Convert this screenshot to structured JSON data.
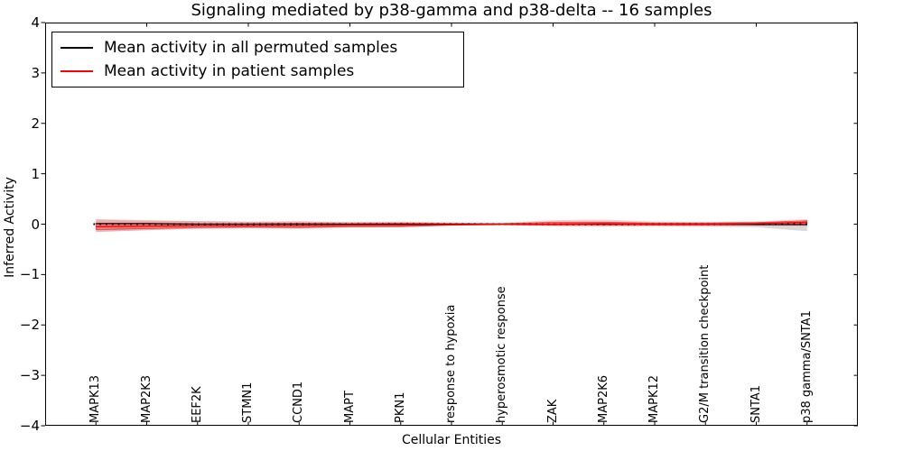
{
  "figure": {
    "title": "Signaling mediated by p38-gamma and p38-delta -- 16 samples",
    "xlabel": "Cellular Entities",
    "ylabel": "Inferred Activity"
  },
  "legend": {
    "items": [
      {
        "label": "Mean activity in all permuted samples",
        "color": "#000000"
      },
      {
        "label": "Mean activity in patient samples",
        "color": "#ff0000"
      }
    ]
  },
  "chart_data": {
    "type": "line",
    "title": "Signaling mediated by p38-gamma and p38-delta -- 16 samples",
    "xlabel": "Cellular Entities",
    "ylabel": "Inferred Activity",
    "legend_position": "upper left",
    "grid": false,
    "categories": [
      "MAPK13",
      "MAP2K3",
      "EEF2K",
      "STMN1",
      "CCND1",
      "MAPT",
      "PKN1",
      "response to hypoxia",
      "hyperosmotic response",
      "ZAK",
      "MAP2K6",
      "MAPK12",
      "G2/M transition checkpoint",
      "SNTA1",
      "p38 gamma/SNTA1"
    ],
    "x": [
      1,
      2,
      3,
      4,
      5,
      6,
      7,
      8,
      9,
      10,
      11,
      12,
      13,
      14,
      15
    ],
    "xlim": [
      0,
      16
    ],
    "ylim": [
      -4,
      4
    ],
    "yticks": [
      -4,
      -3,
      -2,
      -1,
      0,
      1,
      2,
      3,
      4
    ],
    "xticks_unlabeled": [
      2,
      4,
      6,
      8,
      10,
      12,
      14
    ],
    "zero_line": {
      "value": 0,
      "style": "dotted",
      "color": "#000000"
    },
    "series": [
      {
        "name": "Mean activity in all permuted samples",
        "color": "#000000",
        "style": "solid",
        "values": [
          0.01,
          0.01,
          0.0,
          0.0,
          0.0,
          0.0,
          0.0,
          0.0,
          0.0,
          0.0,
          0.0,
          0.0,
          0.0,
          -0.01,
          -0.01
        ]
      },
      {
        "name": "Mean activity in patient samples",
        "color": "#ff0000",
        "style": "solid",
        "values": [
          -0.05,
          -0.04,
          -0.03,
          -0.03,
          -0.03,
          -0.02,
          -0.02,
          -0.01,
          0.0,
          0.0,
          0.01,
          0.0,
          0.0,
          0.01,
          0.04
        ]
      }
    ],
    "bands": [
      {
        "name": "permuted-samples-std-band",
        "color": "#808080",
        "opacity": 0.3,
        "upper": [
          0.09,
          0.07,
          0.06,
          0.05,
          0.05,
          0.04,
          0.04,
          0.03,
          0.02,
          0.03,
          0.04,
          0.04,
          0.04,
          0.05,
          0.05
        ],
        "lower": [
          -0.16,
          -0.12,
          -0.09,
          -0.08,
          -0.08,
          -0.06,
          -0.05,
          -0.03,
          -0.02,
          -0.03,
          -0.04,
          -0.04,
          -0.05,
          -0.06,
          -0.14
        ]
      },
      {
        "name": "patient-samples-outer-band",
        "color": "#ff4444",
        "opacity": 0.25,
        "upper": [
          0.1,
          0.08,
          0.06,
          0.05,
          0.06,
          0.04,
          0.05,
          0.03,
          0.02,
          0.08,
          0.09,
          0.05,
          0.04,
          0.05,
          0.1
        ],
        "lower": [
          -0.15,
          -0.12,
          -0.09,
          -0.08,
          -0.09,
          -0.07,
          -0.06,
          -0.03,
          -0.02,
          -0.04,
          -0.05,
          -0.04,
          -0.04,
          -0.03,
          -0.04
        ]
      },
      {
        "name": "patient-samples-inner-band",
        "color": "#ff2222",
        "opacity": 0.38,
        "upper": [
          0.02,
          0.02,
          0.01,
          0.01,
          0.02,
          0.01,
          0.02,
          0.01,
          0.01,
          0.04,
          0.04,
          0.02,
          0.02,
          0.03,
          0.07
        ],
        "lower": [
          -0.11,
          -0.09,
          -0.07,
          -0.06,
          -0.07,
          -0.05,
          -0.05,
          -0.02,
          -0.01,
          -0.02,
          -0.02,
          -0.02,
          -0.02,
          -0.01,
          0.01
        ]
      }
    ]
  }
}
